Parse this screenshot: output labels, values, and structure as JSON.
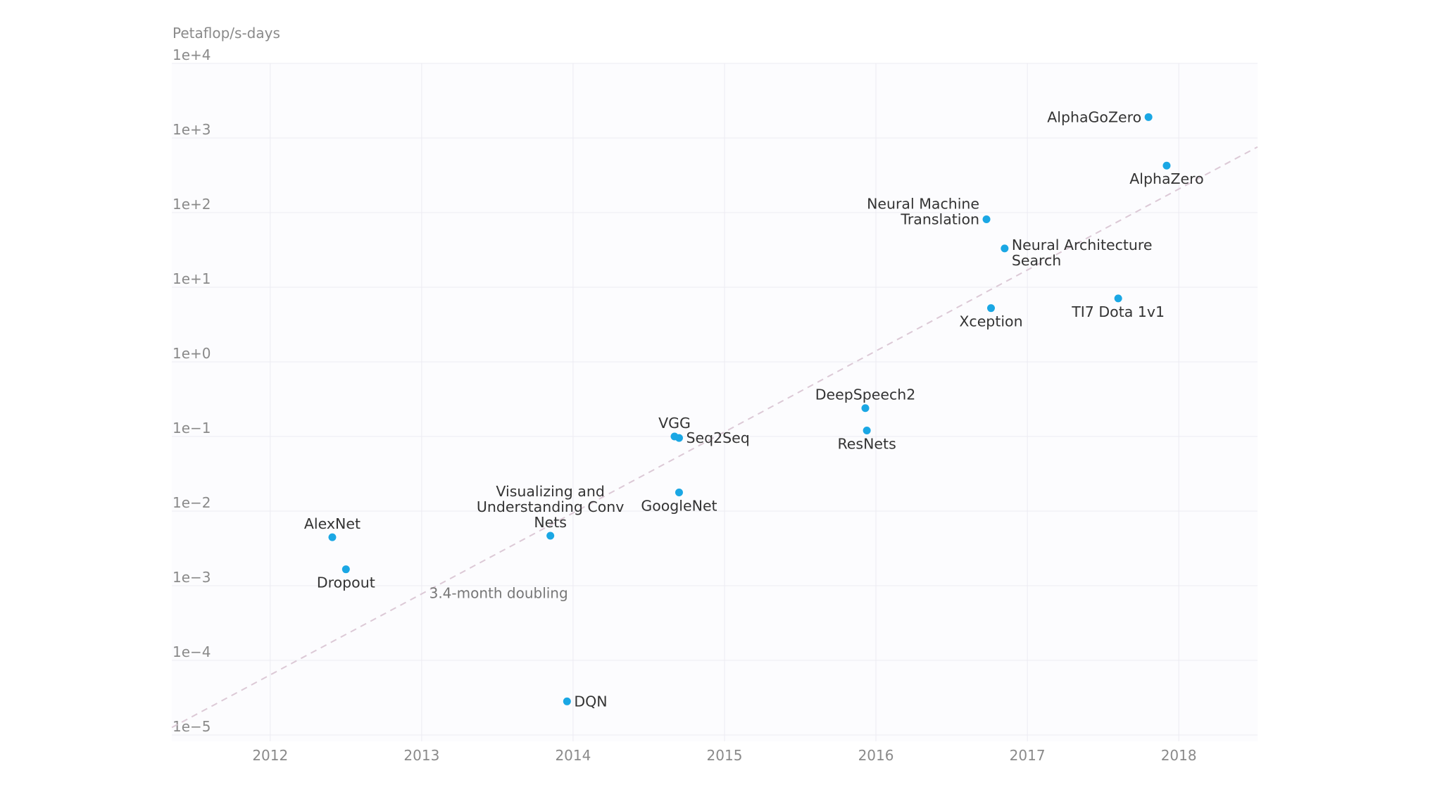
{
  "chart_data": {
    "type": "scatter",
    "title": "",
    "ylabel": "Petaflop/s-days",
    "xlabel": "",
    "y_scale": "log",
    "ylim_exp": [
      -5,
      4
    ],
    "xlim": [
      2011.35,
      2018.52
    ],
    "xticks": [
      {
        "value": 2012,
        "label": "2012"
      },
      {
        "value": 2013,
        "label": "2013"
      },
      {
        "value": 2014,
        "label": "2014"
      },
      {
        "value": 2015,
        "label": "2015"
      },
      {
        "value": 2016,
        "label": "2016"
      },
      {
        "value": 2017,
        "label": "2017"
      },
      {
        "value": 2018,
        "label": "2018"
      }
    ],
    "yticks": [
      {
        "exp": 4,
        "label": "1e+4"
      },
      {
        "exp": 3,
        "label": "1e+3"
      },
      {
        "exp": 2,
        "label": "1e+2"
      },
      {
        "exp": 1,
        "label": "1e+1"
      },
      {
        "exp": 0,
        "label": "1e+0"
      },
      {
        "exp": -1,
        "label": "1e−1"
      },
      {
        "exp": -2,
        "label": "1e−2"
      },
      {
        "exp": -3,
        "label": "1e−3"
      },
      {
        "exp": -4,
        "label": "1e−4"
      },
      {
        "exp": -5,
        "label": "1e−5"
      }
    ],
    "points": [
      {
        "name": "AlphaGoZero",
        "lines": [
          "AlphaGoZero"
        ],
        "x": 2017.8,
        "exp": 3.28,
        "label_pos": "left"
      },
      {
        "name": "AlphaZero",
        "lines": [
          "AlphaZero"
        ],
        "x": 2017.92,
        "exp": 2.63,
        "label_pos": "below"
      },
      {
        "name": "Neural Machine Translation",
        "lines": [
          "Neural Machine",
          "Translation"
        ],
        "x": 2016.73,
        "exp": 1.91,
        "label_pos": "left"
      },
      {
        "name": "Neural Architecture Search",
        "lines": [
          "Neural Architecture",
          "Search"
        ],
        "x": 2016.85,
        "exp": 1.52,
        "label_pos": "right"
      },
      {
        "name": "TI7 Dota 1v1",
        "lines": [
          "TI7 Dota 1v1"
        ],
        "x": 2017.6,
        "exp": 0.85,
        "label_pos": "below"
      },
      {
        "name": "Xception",
        "lines": [
          "Xception"
        ],
        "x": 2016.76,
        "exp": 0.72,
        "label_pos": "below"
      },
      {
        "name": "DeepSpeech2",
        "lines": [
          "DeepSpeech2"
        ],
        "x": 2015.93,
        "exp": -0.62,
        "label_pos": "above"
      },
      {
        "name": "ResNets",
        "lines": [
          "ResNets"
        ],
        "x": 2015.94,
        "exp": -0.92,
        "label_pos": "below"
      },
      {
        "name": "VGG",
        "lines": [
          "VGG"
        ],
        "x": 2014.67,
        "exp": -1.0,
        "label_pos": "above"
      },
      {
        "name": "Seq2Seq",
        "lines": [
          "Seq2Seq"
        ],
        "x": 2014.7,
        "exp": -1.02,
        "label_pos": "right"
      },
      {
        "name": "GoogleNet",
        "lines": [
          "GoogleNet"
        ],
        "x": 2014.7,
        "exp": -1.75,
        "label_pos": "below"
      },
      {
        "name": "Visualizing and Understanding Conv Nets",
        "lines": [
          "Visualizing and",
          "Understanding Conv",
          "Nets"
        ],
        "x": 2013.85,
        "exp": -2.33,
        "label_pos": "above"
      },
      {
        "name": "AlexNet",
        "lines": [
          "AlexNet"
        ],
        "x": 2012.41,
        "exp": -2.35,
        "label_pos": "above"
      },
      {
        "name": "Dropout",
        "lines": [
          "Dropout"
        ],
        "x": 2012.5,
        "exp": -2.78,
        "label_pos": "below"
      },
      {
        "name": "DQN",
        "lines": [
          "DQN"
        ],
        "x": 2013.96,
        "exp": -4.55,
        "label_pos": "right"
      }
    ],
    "trend": {
      "label": "3.4-month doubling",
      "x": [
        2011.35,
        2018.52
      ],
      "exp": [
        -4.9,
        2.88
      ],
      "label_x": 2013.05,
      "label_exp": -3.1
    },
    "colors": {
      "point": "#1aa7e4",
      "trend": "#dcc9d6",
      "grid": "#ecebf2",
      "plot_bg": "#fcfcfe"
    }
  }
}
